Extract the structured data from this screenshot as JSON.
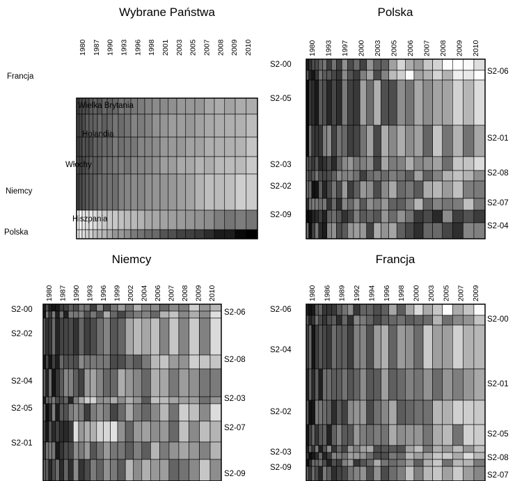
{
  "chart_data": [
    {
      "type": "heatmap",
      "title": "Wybrane Państwa",
      "years": [
        "1980",
        "1987",
        "1990",
        "1993",
        "1996",
        "1998",
        "2001",
        "2003",
        "2005",
        "2007",
        "2008",
        "2009",
        "2010"
      ],
      "rows_left": [
        "Francja",
        "Wielka Brytania",
        "Holandia",
        "Włochy",
        "Niemcy",
        "Hiszpania",
        "Polska"
      ],
      "rows_right": []
    },
    {
      "type": "heatmap",
      "title": "Polska",
      "years": [
        "1980",
        "1993",
        "1997",
        "2000",
        "2003",
        "2005",
        "2006",
        "2007",
        "2008",
        "2009",
        "2010"
      ],
      "rows_left": [
        "S2-00",
        "S2-05",
        "S2-03",
        "S2-02",
        "S2-09"
      ],
      "rows_right": [
        "S2-06",
        "S2-01",
        "S2-08",
        "S2-07",
        "S2-04"
      ]
    },
    {
      "type": "heatmap",
      "title": "Niemcy",
      "years": [
        "1980",
        "1987",
        "1990",
        "1993",
        "1996",
        "1999",
        "2002",
        "2004",
        "2006",
        "2007",
        "2008",
        "2009",
        "2010"
      ],
      "rows_left": [
        "S2-00",
        "S2-02",
        "S2-04",
        "S2-05",
        "S2-01"
      ],
      "rows_right": [
        "S2-06",
        "S2-08",
        "S2-03",
        "S2-07",
        "S2-09"
      ]
    },
    {
      "type": "heatmap",
      "title": "Francja",
      "years": [
        "1980",
        "1986",
        "1989",
        "1992",
        "1994",
        "1996",
        "1998",
        "2000",
        "2003",
        "2005",
        "2007",
        "2009"
      ],
      "rows_left": [
        "S2-06",
        "S2-04",
        "S2-02",
        "S2-03",
        "S2-09"
      ],
      "rows_right": [
        "S2-00",
        "S2-01",
        "S2-05",
        "S2-08",
        "S2-07"
      ]
    }
  ]
}
